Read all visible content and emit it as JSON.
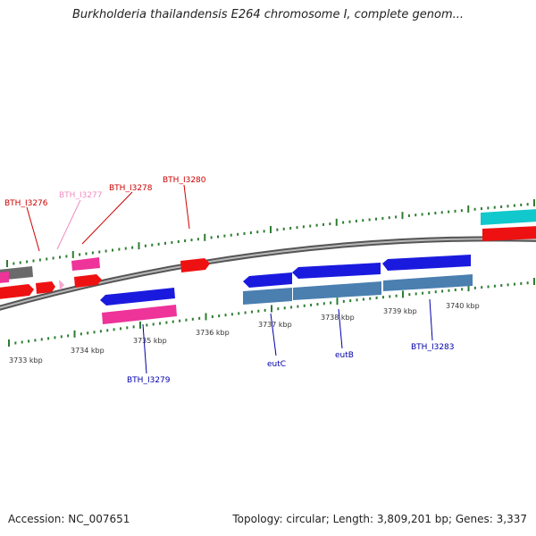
{
  "title": "Burkholderia thailandensis E264 chromosome I, complete genom...",
  "footer": {
    "accession": "Accession: NC_007651",
    "summary": "Topology: circular; Length: 3,809,201 bp; Genes: 3,337"
  },
  "colors": {
    "backbone": "#8a8a8a",
    "ticks": "#2e7d32",
    "label_forward": "#cc0000",
    "label_reverse": "#0000aa",
    "label_faded": "#f08cc0",
    "gene_red": "#ee1111",
    "gene_pink": "#ee3399",
    "gene_blue": "#1a1adf",
    "gene_steel": "#4a7fb0",
    "gene_cyan": "#11c8cc",
    "gene_gray": "#6a6a6a"
  },
  "scale": {
    "unit": "kbp",
    "outer_labels": [
      "3733 kbp",
      "3734 kbp",
      "3735 kbp",
      "3736 kbp",
      "3737 kbp",
      "3738 kbp",
      "3739 kbp",
      "3740 kbp"
    ]
  },
  "gene_labels": [
    {
      "name": "BTH_I3276",
      "strand": "forward"
    },
    {
      "name": "BTH_I3277",
      "strand": "faded"
    },
    {
      "name": "BTH_I3278",
      "strand": "forward"
    },
    {
      "name": "BTH_I3280",
      "strand": "forward"
    },
    {
      "name": "BTH_I3279",
      "strand": "reverse"
    },
    {
      "name": "eutC",
      "strand": "reverse"
    },
    {
      "name": "eutB",
      "strand": "reverse"
    },
    {
      "name": "BTH_I3283",
      "strand": "reverse"
    }
  ]
}
